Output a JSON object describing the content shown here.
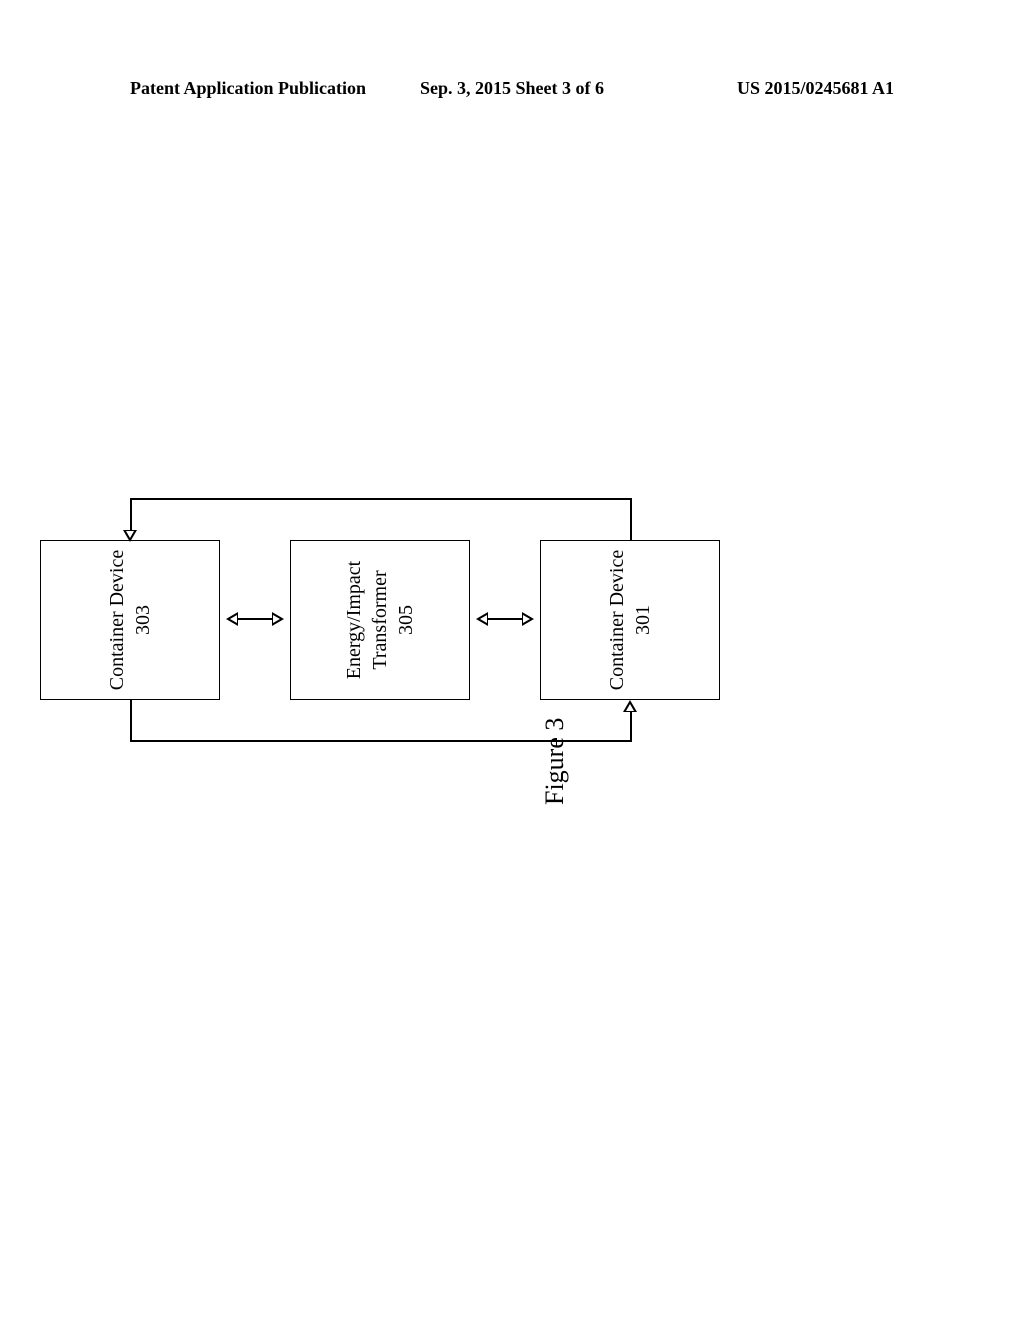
{
  "header": {
    "left": "Patent Application Publication",
    "center": "Sep. 3, 2015  Sheet 3 of 6",
    "right": "US 2015/0245681 A1"
  },
  "diagram": {
    "type": "flowchart",
    "nodes": [
      {
        "id": "n1",
        "label_line1": "Container Device",
        "label_line2": "303"
      },
      {
        "id": "n2",
        "label_line1": "Energy/Impact",
        "label_line2": "Transformer",
        "label_line3": "305"
      },
      {
        "id": "n3",
        "label_line1": "Container Device",
        "label_line2": "301"
      }
    ],
    "figure_label": "Figure 3",
    "border_color": "#000000",
    "background_color": "#ffffff",
    "font_family": "Times New Roman",
    "box_border_width": 1.5,
    "node_font_size": 20,
    "figure_label_font_size": 26,
    "header_font_size": 18
  }
}
